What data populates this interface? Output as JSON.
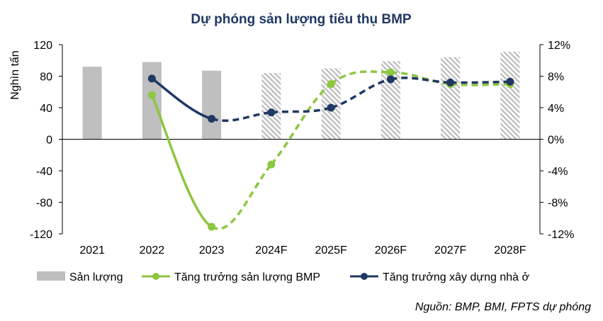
{
  "chart_data": {
    "type": "bar",
    "title": "Dự phóng sản lượng tiêu thụ BMP",
    "ylabel": "Nghìn tấn",
    "ylim": [
      -120,
      120
    ],
    "y2lim": [
      -0.12,
      0.12
    ],
    "left_ticks": [
      "120",
      "80",
      "40",
      "0",
      "-40",
      "-80",
      "-120"
    ],
    "right_ticks": [
      "12%",
      "8%",
      "4%",
      "0%",
      "-4%",
      "-8%",
      "-12%"
    ],
    "categories": [
      "2021",
      "2022",
      "2023",
      "2024F",
      "2025F",
      "2026F",
      "2027F",
      "2028F"
    ],
    "forecast_from_index": 3,
    "series": [
      {
        "name": "Sản lượng",
        "type": "bar",
        "axis": "left",
        "color": "#bfbfbf",
        "forecast_pattern": "diagonal-hatch",
        "values": [
          92,
          98,
          87,
          84,
          90,
          99,
          104,
          111
        ]
      },
      {
        "name": "Tăng trưởng sản lượng BMP",
        "type": "line",
        "axis": "right",
        "color": "#8dc63f",
        "dashed_after_index": 2,
        "values": [
          null,
          0.056,
          -0.111,
          -0.032,
          0.07,
          0.085,
          0.07,
          0.07
        ]
      },
      {
        "name": "Tăng trưởng xây dựng nhà ở",
        "type": "line",
        "axis": "right",
        "color": "#1f3864",
        "dashed_after_index": 2,
        "values": [
          null,
          0.077,
          0.026,
          0.034,
          0.04,
          0.076,
          0.072,
          0.073
        ]
      }
    ],
    "legend_position": "bottom",
    "grid": false,
    "source": "Nguồn: BMP, BMI, FPTS dự phóng"
  }
}
